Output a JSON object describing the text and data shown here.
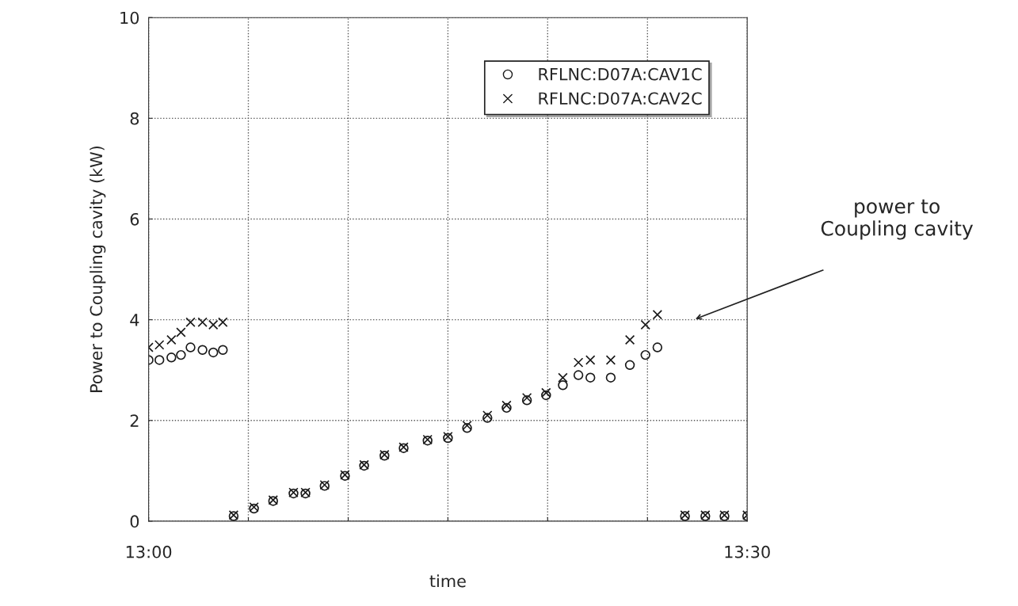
{
  "chart_data": {
    "type": "scatter",
    "xlabel": "time",
    "ylabel": "Power to Coupling cavity (kW)",
    "x": [
      13.0,
      13.009,
      13.019,
      13.027,
      13.035,
      13.045,
      13.054,
      13.062,
      13.071,
      13.088,
      13.104,
      13.121,
      13.131,
      13.147,
      13.164,
      13.18,
      13.197,
      13.213,
      13.233,
      13.25,
      13.266,
      13.283,
      13.299,
      13.316,
      13.332,
      13.346,
      13.359,
      13.369,
      13.386,
      13.402,
      13.415,
      13.425,
      13.448,
      13.465,
      13.481,
      13.5
    ],
    "series": [
      {
        "name": "RFLNC:D07A:CAV1C",
        "color": "#1a1a1a",
        "marker": "circle",
        "values": [
          3.2,
          3.2,
          3.25,
          3.3,
          3.45,
          3.4,
          3.35,
          3.4,
          0.1,
          0.25,
          0.4,
          0.55,
          0.55,
          0.7,
          0.9,
          1.1,
          1.3,
          1.45,
          1.6,
          1.65,
          1.85,
          2.05,
          2.25,
          2.4,
          2.5,
          2.7,
          2.9,
          2.85,
          2.85,
          3.1,
          3.3,
          3.45,
          0.1,
          0.1,
          0.1,
          0.1
        ]
      },
      {
        "name": "RFLNC:D07A:CAV2C",
        "color": "#1a1a1a",
        "marker": "cross",
        "values": [
          3.45,
          3.5,
          3.6,
          3.75,
          3.95,
          3.95,
          3.9,
          3.95,
          0.12,
          0.28,
          0.42,
          0.57,
          0.57,
          0.72,
          0.92,
          1.12,
          1.32,
          1.47,
          1.62,
          1.68,
          1.9,
          2.1,
          2.3,
          2.45,
          2.55,
          2.85,
          3.15,
          3.2,
          3.2,
          3.6,
          3.9,
          4.1,
          0.12,
          0.12,
          0.12,
          0.12
        ]
      }
    ],
    "xlim": [
      13.0,
      13.5
    ],
    "xticks": [
      {
        "value": 13.0,
        "label": "13:00"
      },
      {
        "value": 13.0833,
        "label": null
      },
      {
        "value": 13.1667,
        "label": null
      },
      {
        "value": 13.25,
        "label": null
      },
      {
        "value": 13.3333,
        "label": null
      },
      {
        "value": 13.4167,
        "label": null
      },
      {
        "value": 13.5,
        "label": "13:30"
      }
    ],
    "ylim": [
      0,
      10
    ],
    "yticks": [
      0,
      2,
      4,
      6,
      8,
      10
    ],
    "grid": true,
    "legend": "top right",
    "annotations": [
      "power to\nCoupling cavity"
    ]
  }
}
